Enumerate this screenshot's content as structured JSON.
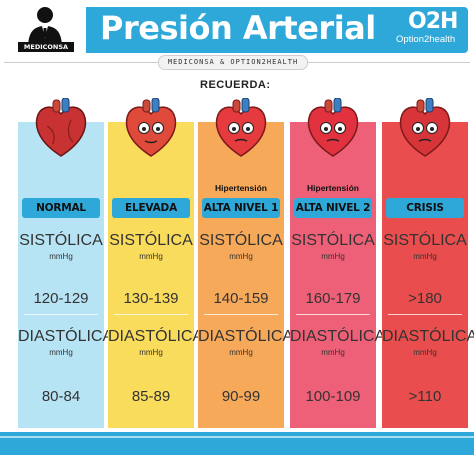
{
  "header": {
    "logo_text": "MEDICONSA",
    "title": "Presión Arterial",
    "partner_logo": "O2H",
    "partner_name": "Option2health",
    "sub_banner": "MEDICONSA & OPTION2HEALTH"
  },
  "recuerda": "RECUERDA:",
  "colors": {
    "brand_blue": "#2ea8d9",
    "normal": "#b7e4f5",
    "elevada": "#f9dc5c",
    "alta1": "#f7a95a",
    "alta2": "#ee6077",
    "crisis": "#ea4d4d"
  },
  "categories": [
    {
      "tag": "",
      "label": "NORMAL",
      "sys_label": "SISTÓLICA",
      "sys_unit": "mmHg",
      "sys_value": "120-129",
      "dia_label": "DIASTÓLICA",
      "dia_unit": "mmHg",
      "dia_value": "80-84",
      "icon": "heart-normal-icon"
    },
    {
      "tag": "",
      "label": "ELEVADA",
      "sys_label": "SISTÓLICA",
      "sys_unit": "mmHg",
      "sys_value": "130-139",
      "dia_label": "DIASTÓLICA",
      "dia_unit": "mmHg",
      "dia_value": "85-89",
      "icon": "heart-worried-icon"
    },
    {
      "tag": "Hipertensión",
      "label": "ALTA NIVEL 1",
      "sys_label": "SISTÓLICA",
      "sys_unit": "mmHg",
      "sys_value": "140-159",
      "dia_label": "DIASTÓLICA",
      "dia_unit": "mmHg",
      "dia_value": "90-99",
      "icon": "heart-tired-icon"
    },
    {
      "tag": "Hipertensión",
      "label": "ALTA NIVEL 2",
      "sys_label": "SISTÓLICA",
      "sys_unit": "mmHg",
      "sys_value": "160-179",
      "dia_label": "DIASTÓLICA",
      "dia_unit": "mmHg",
      "dia_value": "100-109",
      "icon": "heart-sick-icon"
    },
    {
      "tag": "",
      "label": "CRISIS",
      "sys_label": "SISTÓLICA",
      "sys_unit": "mmHg",
      "sys_value": ">180",
      "dia_label": "DIASTÓLICA",
      "dia_unit": "mmHg",
      "dia_value": ">110",
      "icon": "heart-crying-icon"
    }
  ]
}
